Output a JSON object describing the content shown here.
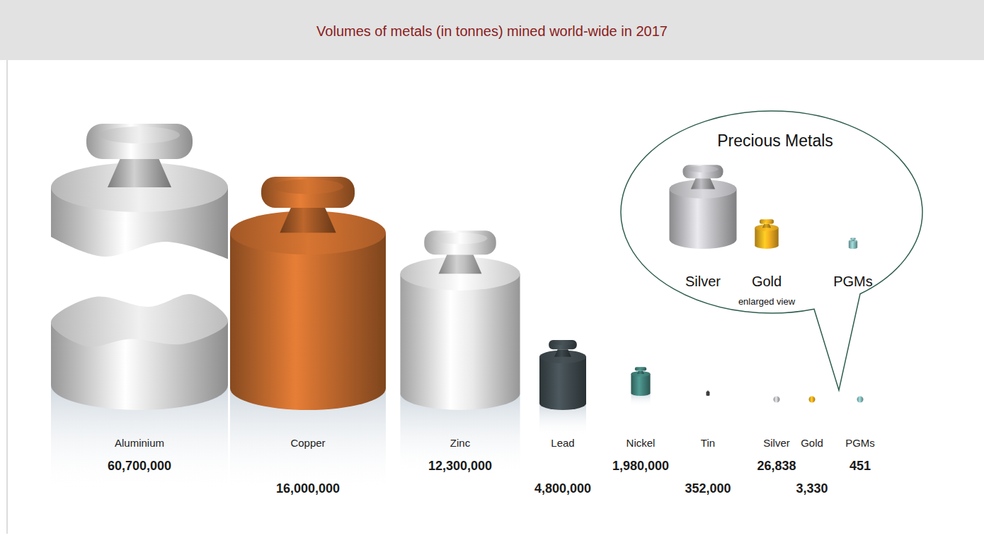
{
  "chart_data": {
    "type": "pictograph",
    "title": "Volumes of metals (in tonnes) mined world-wide in 2017",
    "categories": [
      "Aluminium",
      "Copper",
      "Zinc",
      "Lead",
      "Nickel",
      "Tin",
      "Silver",
      "Gold",
      "PGMs"
    ],
    "values": [
      60700000,
      16000000,
      12300000,
      4800000,
      1980000,
      352000,
      26838,
      3330,
      451
    ],
    "value_labels": [
      "60,700,000",
      "16,000,000",
      "12,300,000",
      "4,800,000",
      "1,980,000",
      "352,000",
      "26,838",
      "3,330",
      "451"
    ],
    "colors": [
      "#c9c9c9",
      "#b4622a",
      "#d6d6d6",
      "#3b4549",
      "#3f7a74",
      "#3a3a3a",
      "#b6b6ba",
      "#e0a21c",
      "#7fb0b0"
    ],
    "data_labels": true,
    "annotations": [
      "Precious Metals",
      "enlarged view"
    ]
  }
}
